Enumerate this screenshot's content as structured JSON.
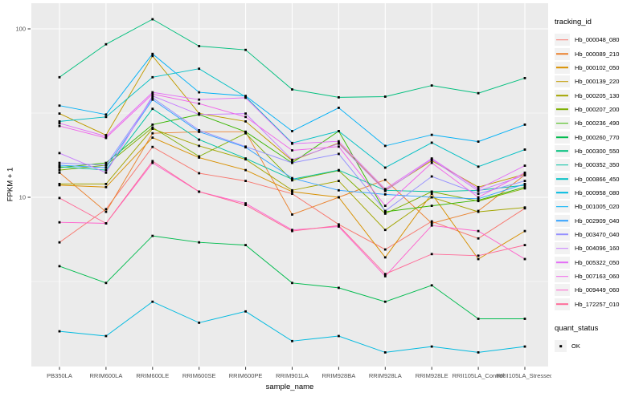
{
  "figure": {
    "background": "#FFFFFF",
    "panel_background": "#EBEBEB",
    "gridline_color": "#FFFFFF",
    "tick_color": "#333333",
    "tick_label_color": "#4D4D4D",
    "axis_title_color": "#000000",
    "legend_key_background": "#F2F2F2",
    "point_color": "#000000"
  },
  "chart_data": {
    "type": "line",
    "title": "",
    "xlabel": "sample_name",
    "ylabel": "FPKM + 1",
    "y_scale": "log10",
    "ylim": [
      1.0,
      143
    ],
    "yticks": [
      10,
      100
    ],
    "ytick_labels": [
      "10",
      "100"
    ],
    "grid": "on",
    "legend_position": "right",
    "legend_title": "tracking_id",
    "point_marker": {
      "shape": "square",
      "color": "#000000",
      "size": 2.8
    },
    "categories": [
      "PB350LA",
      "RRIM600LA",
      "RRIM600LE",
      "RRIM600SE",
      "RRIM600PE",
      "RRIM901LA",
      "RRIM928BA",
      "RRIM928LA",
      "RRIM928LE",
      "RRII105LA_Control",
      "RRII105LA_Stressed"
    ],
    "series": [
      {
        "name": "Hb_000048_080",
        "color": "#F8766D",
        "values": [
          5.4,
          8.5,
          19.9,
          13.9,
          12.5,
          10.5,
          6.9,
          4.9,
          7.2,
          5.7,
          8.6
        ]
      },
      {
        "name": "Hb_000089_210",
        "color": "#EA8331",
        "values": [
          14.0,
          8.2,
          24.0,
          24.5,
          24.5,
          7.9,
          10.0,
          12.7,
          7.0,
          8.3,
          13.6
        ]
      },
      {
        "name": "Hb_000102_050",
        "color": "#D89000",
        "values": [
          11.8,
          11.5,
          22.6,
          17.2,
          14.5,
          10.8,
          10.0,
          4.4,
          10.5,
          4.3,
          6.3
        ]
      },
      {
        "name": "Hb_000139_220",
        "color": "#C09B00",
        "values": [
          31.4,
          23.4,
          69.0,
          31.5,
          28.2,
          16.5,
          21.0,
          11.0,
          16.5,
          11.5,
          13.7
        ]
      },
      {
        "name": "Hb_000205_130",
        "color": "#A3A500",
        "values": [
          12.0,
          12.0,
          25.5,
          20.2,
          16.8,
          11.0,
          12.5,
          6.4,
          10.0,
          8.2,
          8.7
        ]
      },
      {
        "name": "Hb_000207_200",
        "color": "#7CAE00",
        "values": [
          14.5,
          15.5,
          26.0,
          17.5,
          24.0,
          12.6,
          14.4,
          8.0,
          10.8,
          9.5,
          11.3
        ]
      },
      {
        "name": "Hb_000236_490",
        "color": "#39B600",
        "values": [
          15.0,
          16.0,
          27.0,
          31.0,
          24.5,
          16.0,
          24.7,
          8.2,
          8.9,
          9.6,
          11.5
        ]
      },
      {
        "name": "Hb_000260_770",
        "color": "#00BB4E",
        "values": [
          3.9,
          3.1,
          5.9,
          5.4,
          5.2,
          3.1,
          2.9,
          2.4,
          3.0,
          1.9,
          1.9
        ]
      },
      {
        "name": "Hb_000300_550",
        "color": "#00BF7D",
        "values": [
          51.6,
          81.0,
          114.0,
          79.0,
          75.0,
          43.7,
          39.2,
          39.6,
          46.1,
          41.5,
          51.0
        ]
      },
      {
        "name": "Hb_000352_350",
        "color": "#00C1A3",
        "values": [
          15.2,
          14.5,
          33.5,
          22.0,
          17.0,
          12.8,
          14.5,
          11.0,
          10.8,
          11.0,
          11.8
        ]
      },
      {
        "name": "Hb_000866_450",
        "color": "#00BFC4",
        "values": [
          28.2,
          30.0,
          51.6,
          58.0,
          39.5,
          21.0,
          24.7,
          15.0,
          21.1,
          15.2,
          19.2
        ]
      },
      {
        "name": "Hb_000958_080",
        "color": "#00BAE0",
        "values": [
          1.6,
          1.5,
          2.4,
          1.8,
          2.1,
          1.4,
          1.5,
          1.2,
          1.3,
          1.2,
          1.3
        ]
      },
      {
        "name": "Hb_001005_020",
        "color": "#00B0F6",
        "values": [
          35.0,
          31.0,
          71.0,
          42.0,
          40.0,
          24.7,
          34.0,
          20.2,
          23.5,
          21.4,
          27.0
        ]
      },
      {
        "name": "Hb_002909_040",
        "color": "#35A2FF",
        "values": [
          15.5,
          15.0,
          38.0,
          24.5,
          19.8,
          13.0,
          11.0,
          10.4,
          10.0,
          9.8,
          12.0
        ]
      },
      {
        "name": "Hb_003470_040",
        "color": "#9590FF",
        "values": [
          16.0,
          15.5,
          39.0,
          25.0,
          20.0,
          16.0,
          18.1,
          8.3,
          13.3,
          10.5,
          12.5
        ]
      },
      {
        "name": "Hb_004096_160",
        "color": "#C77CFF",
        "values": [
          18.3,
          14.0,
          40.0,
          31.0,
          31.4,
          16.7,
          20.8,
          10.9,
          16.8,
          10.9,
          13.5
        ]
      },
      {
        "name": "Hb_005322_050",
        "color": "#E36EF6",
        "values": [
          27.5,
          23.0,
          42.0,
          38.0,
          39.0,
          20.8,
          21.5,
          11.2,
          17.0,
          11.2,
          15.4
        ]
      },
      {
        "name": "Hb_007163_060",
        "color": "#F066EA",
        "values": [
          26.5,
          22.5,
          41.0,
          36.0,
          30.0,
          19.0,
          20.0,
          8.9,
          16.0,
          10.0,
          14.0
        ]
      },
      {
        "name": "Hb_009449_060",
        "color": "#FF61CC",
        "values": [
          7.1,
          7.0,
          16.0,
          10.8,
          9.2,
          6.4,
          6.7,
          3.4,
          6.8,
          6.3,
          4.3
        ]
      },
      {
        "name": "Hb_172257_010",
        "color": "#FF6A98",
        "values": [
          9.9,
          7.0,
          16.4,
          10.8,
          9.0,
          6.3,
          6.8,
          3.5,
          4.6,
          4.5,
          5.2
        ]
      }
    ],
    "legend2": {
      "title": "quant_status",
      "items": [
        {
          "label": "OK",
          "marker": "square",
          "color": "#000000"
        }
      ]
    }
  }
}
